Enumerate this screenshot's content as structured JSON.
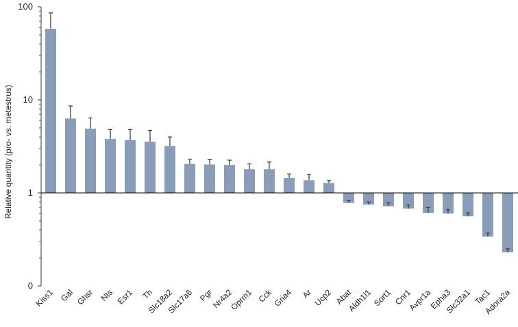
{
  "chart_data": {
    "type": "bar",
    "title": "",
    "xlabel": "",
    "ylabel": "Relative quantity (pro- vs. metestrus)",
    "yscale": "log",
    "ylim": [
      0.1,
      100
    ],
    "yticks": [
      {
        "value": 100,
        "label": "100"
      },
      {
        "value": 10,
        "label": "10"
      },
      {
        "value": 1,
        "label": "1"
      },
      {
        "value": 0.1,
        "label": "0"
      }
    ],
    "baseline": 1,
    "grid": false,
    "legend": "none",
    "bar_color": "#8a9db8",
    "error_color": "#333333",
    "categories": [
      "Kiss1",
      "Gal",
      "Ghsr",
      "Nts",
      "Esr1",
      "Th",
      "Slc18a2",
      "Slc17a6",
      "Pgr",
      "Nr4a2",
      "Oprm1",
      "Cck",
      "Gria4",
      "Ar",
      "Ucp2",
      "Abat",
      "Aldh1l1",
      "Sort1",
      "Cnr1",
      "Avpr1a",
      "Epha3",
      "Slc32a1",
      "Tac1",
      "Adora2a"
    ],
    "values": [
      58,
      6.3,
      4.9,
      3.8,
      3.7,
      3.55,
      3.2,
      2.05,
      2.02,
      2.0,
      1.8,
      1.8,
      1.45,
      1.37,
      1.28,
      0.78,
      0.75,
      0.72,
      0.68,
      0.61,
      0.6,
      0.56,
      0.34,
      0.23
    ],
    "error_upper": [
      86,
      8.6,
      6.4,
      4.8,
      4.8,
      4.7,
      4.0,
      2.3,
      2.28,
      2.25,
      2.05,
      2.15,
      1.6,
      1.58,
      1.36,
      0.83,
      0.8,
      0.78,
      0.74,
      0.7,
      0.66,
      0.61,
      0.37,
      0.25
    ]
  }
}
